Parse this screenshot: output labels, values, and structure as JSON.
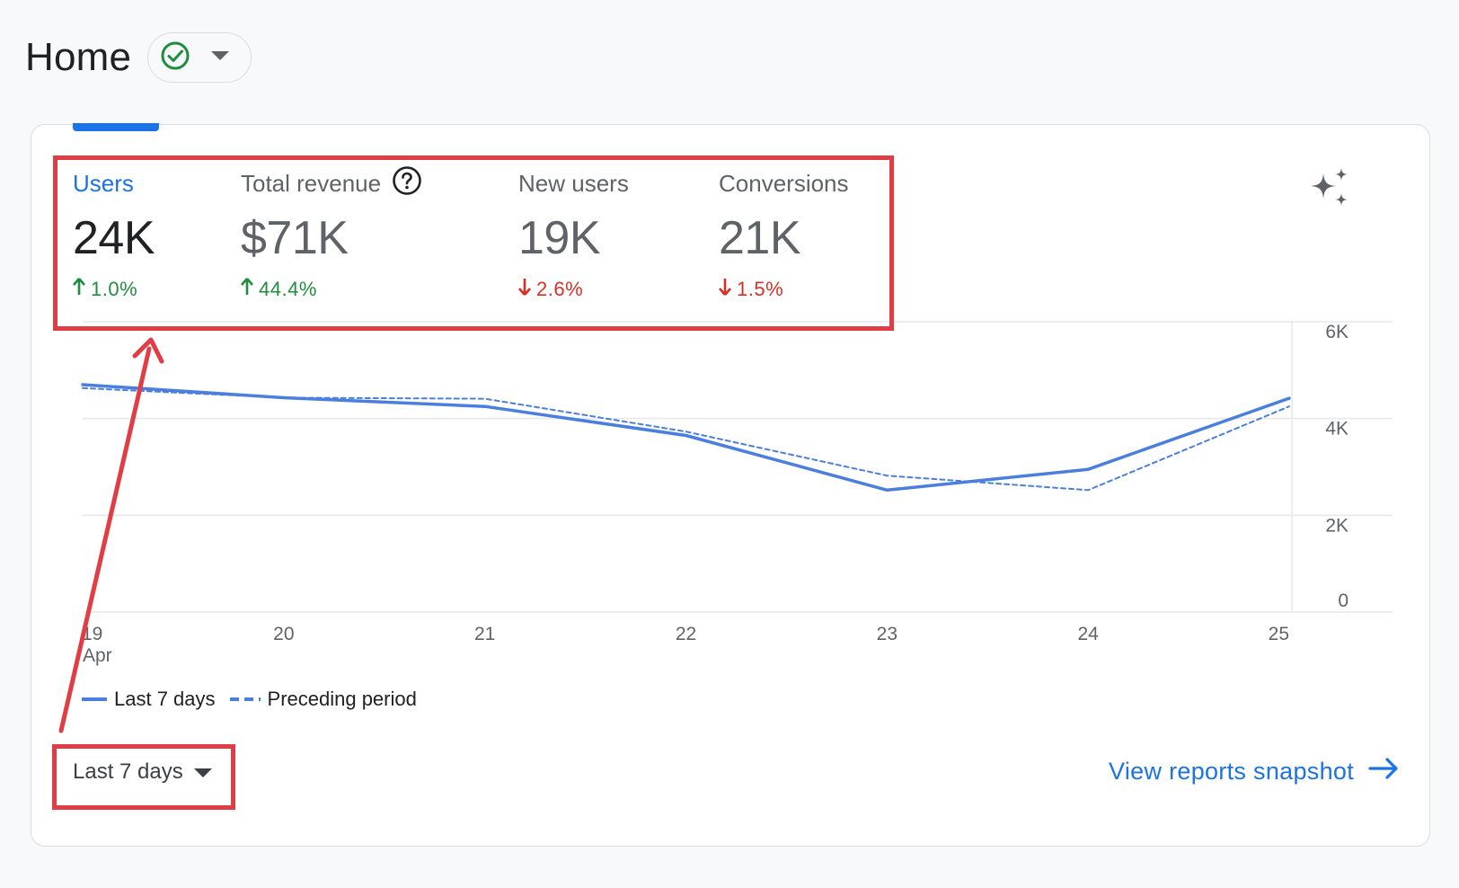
{
  "header": {
    "title": "Home",
    "status_icon": "check-circle-icon",
    "dropdown_icon": "arrow-drop-down-icon"
  },
  "metrics": [
    {
      "label": "Users",
      "value": "24K",
      "change": "1.0%",
      "direction": "up",
      "active": true
    },
    {
      "label": "Total revenue",
      "value": "$71K",
      "change": "44.4%",
      "direction": "up",
      "active": false,
      "help_icon": "help-circle-icon"
    },
    {
      "label": "New users",
      "value": "19K",
      "change": "2.6%",
      "direction": "down",
      "active": false
    },
    {
      "label": "Conversions",
      "value": "21K",
      "change": "1.5%",
      "direction": "down",
      "active": false
    }
  ],
  "insights_icon": "sparkle-icon",
  "chart_data": {
    "type": "line",
    "categories": [
      "19",
      "20",
      "21",
      "22",
      "23",
      "24",
      "25"
    ],
    "x_sublabel": "Apr",
    "series": [
      {
        "name": "Last 7 days",
        "style": "solid",
        "values": [
          4700,
          4430,
          4250,
          3650,
          2520,
          2950,
          4420
        ]
      },
      {
        "name": "Preceding period",
        "style": "dashed",
        "values": [
          4630,
          4430,
          4410,
          3730,
          2820,
          2520,
          4250
        ]
      }
    ],
    "yticks": [
      "0",
      "2K",
      "4K",
      "6K"
    ],
    "ylim": [
      0,
      6000
    ],
    "color": "#4a7fe0",
    "grid": true
  },
  "legend": {
    "solid_label": "Last 7 days",
    "dashed_label": "Preceding period"
  },
  "date_range": {
    "label": "Last 7 days",
    "dropdown_icon": "arrow-drop-down-icon"
  },
  "snapshot_link": {
    "label": "View reports snapshot",
    "icon": "arrow-forward-icon"
  },
  "colors": {
    "accent": "#1a73e8",
    "positive": "#1e8e3e",
    "negative": "#d93025",
    "annotation": "#e03e44"
  }
}
